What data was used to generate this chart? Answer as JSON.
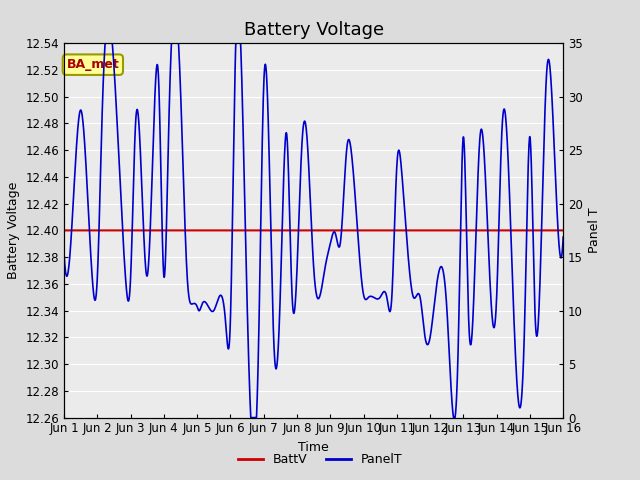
{
  "title": "Battery Voltage",
  "xlabel": "Time",
  "ylabel_left": "Battery Voltage",
  "ylabel_right": "Panel T",
  "annotation_text": "BA_met",
  "ylim_left": [
    12.26,
    12.54
  ],
  "ylim_right": [
    0,
    35
  ],
  "yticks_left": [
    12.26,
    12.28,
    12.3,
    12.32,
    12.34,
    12.36,
    12.38,
    12.4,
    12.42,
    12.44,
    12.46,
    12.48,
    12.5,
    12.52,
    12.54
  ],
  "yticks_right": [
    0,
    5,
    10,
    15,
    20,
    25,
    30,
    35
  ],
  "xtick_labels": [
    "Jun 1",
    "Jun 2",
    "Jun 3",
    "Jun 4",
    "Jun 5",
    "Jun 6",
    "Jun 7",
    "Jun 8",
    "Jun 9",
    "Jun 10",
    "Jun 11",
    "Jun 12",
    "Jun 13",
    "Jun 14",
    "Jun 15",
    "Jun 16"
  ],
  "battv_value": 12.4,
  "bg_color": "#dcdcdc",
  "plot_bg_color": "#ebebeb",
  "grid_color": "#ffffff",
  "blue_line_color": "#0000cd",
  "red_line_color": "#cc0000",
  "annotation_bg": "#ffff99",
  "annotation_border": "#999900",
  "annotation_text_color": "#aa0000",
  "legend_labels": [
    "BattV",
    "PanelT"
  ],
  "title_fontsize": 13,
  "axis_label_fontsize": 9,
  "tick_fontsize": 8.5,
  "panelT_x": [
    0.0,
    0.15,
    0.5,
    0.85,
    1.0,
    1.15,
    1.5,
    1.85,
    2.0,
    2.15,
    2.5,
    2.7,
    2.85,
    3.0,
    3.15,
    3.5,
    3.7,
    3.85,
    4.0,
    4.05,
    4.15,
    4.5,
    4.85,
    5.0,
    5.15,
    5.5,
    5.85,
    6.0,
    6.15,
    6.3,
    6.5,
    6.7,
    6.85,
    7.0,
    7.15,
    7.3,
    7.5,
    7.85,
    8.0,
    8.15,
    8.3,
    8.5,
    8.65,
    8.85,
    9.0,
    9.15,
    9.3,
    9.5,
    9.7,
    9.85,
    10.0,
    10.15,
    10.5,
    10.7,
    10.85,
    11.0,
    11.15,
    11.5,
    11.85,
    12.0,
    12.15,
    12.5,
    12.85,
    13.0,
    13.15,
    13.5,
    13.85,
    14.0,
    14.15,
    14.5,
    14.85,
    15.0
  ],
  "panelT_y": [
    12.383,
    12.374,
    12.49,
    12.364,
    12.364,
    12.49,
    12.523,
    12.364,
    12.364,
    12.48,
    12.366,
    12.48,
    12.508,
    12.366,
    12.48,
    12.506,
    12.366,
    12.345,
    12.343,
    12.34,
    12.345,
    12.34,
    12.333,
    12.333,
    12.53,
    12.348,
    12.319,
    12.508,
    12.47,
    12.319,
    12.353,
    12.47,
    12.353,
    12.37,
    12.465,
    12.47,
    12.373,
    12.373,
    12.39,
    12.398,
    12.39,
    12.462,
    12.455,
    12.39,
    12.352,
    12.35,
    12.35,
    12.35,
    12.35,
    12.35,
    12.448,
    12.443,
    12.35,
    12.35,
    12.32,
    12.32,
    12.35,
    12.343,
    12.318,
    12.47,
    12.34,
    12.47,
    12.34,
    12.35,
    12.47,
    12.347,
    12.34,
    12.47,
    12.34,
    12.517,
    12.398,
    12.395
  ]
}
